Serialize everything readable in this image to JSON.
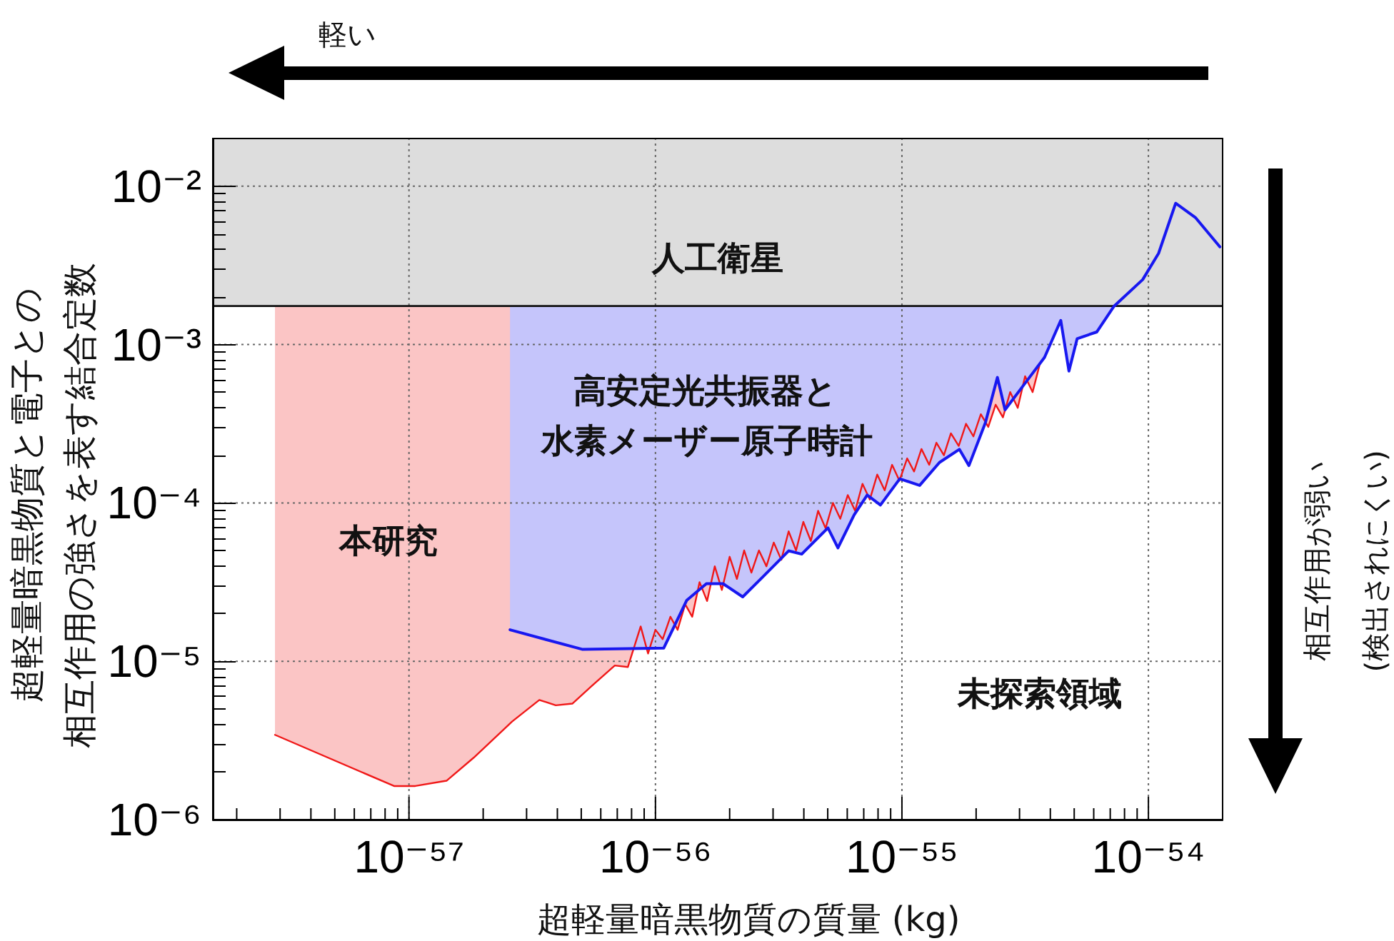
{
  "chart_data": {
    "type": "line",
    "xlabel": "超軽量暗黒物質の質量 (kg)",
    "ylabel": "超軽量暗黒物質と電子との相互作用の強さを表す結合定数",
    "log": "xy",
    "grid": true,
    "xlim": [
      1.6e-58,
      2e-54
    ],
    "ylim": [
      1e-06,
      0.02
    ],
    "xticks": [
      {
        "value": 1e-57,
        "label": "10⁻⁵⁷"
      },
      {
        "value": 1e-56,
        "label": "10⁻⁵⁶"
      },
      {
        "value": 1e-55,
        "label": "10⁻⁵⁵"
      },
      {
        "value": 1e-54,
        "label": "10⁻⁵⁴"
      },
      {
        "value": 2e-58,
        "label": null
      },
      {
        "value": 3e-58,
        "label": null
      },
      {
        "value": 4e-58,
        "label": null
      },
      {
        "value": 5e-58,
        "label": null
      },
      {
        "value": 6e-58,
        "label": null
      },
      {
        "value": 7e-58,
        "label": null
      },
      {
        "value": 8e-58,
        "label": null
      },
      {
        "value": 9e-58,
        "label": null
      },
      {
        "value": 2e-57,
        "label": null
      },
      {
        "value": 3e-57,
        "label": null
      },
      {
        "value": 4e-57,
        "label": null
      },
      {
        "value": 5e-57,
        "label": null
      },
      {
        "value": 6e-57,
        "label": null
      },
      {
        "value": 7e-57,
        "label": null
      },
      {
        "value": 8e-57,
        "label": null
      },
      {
        "value": 9e-57,
        "label": null
      },
      {
        "value": 2e-56,
        "label": null
      },
      {
        "value": 3e-56,
        "label": null
      },
      {
        "value": 4e-56,
        "label": null
      },
      {
        "value": 5e-56,
        "label": null
      },
      {
        "value": 6e-56,
        "label": null
      },
      {
        "value": 7e-56,
        "label": null
      },
      {
        "value": 8e-56,
        "label": null
      },
      {
        "value": 9e-56,
        "label": null
      },
      {
        "value": 2e-55,
        "label": null
      },
      {
        "value": 3e-55,
        "label": null
      },
      {
        "value": 4e-55,
        "label": null
      },
      {
        "value": 5e-55,
        "label": null
      },
      {
        "value": 6e-55,
        "label": null
      },
      {
        "value": 7e-55,
        "label": null
      },
      {
        "value": 8e-55,
        "label": null
      },
      {
        "value": 9e-55,
        "label": null
      }
    ],
    "yticks": [
      {
        "value": 1e-06,
        "label": "10⁻⁶"
      },
      {
        "value": 1e-05,
        "label": "10⁻⁵"
      },
      {
        "value": 0.0001,
        "label": "10⁻⁴"
      },
      {
        "value": 0.001,
        "label": "10⁻³"
      },
      {
        "value": 0.01,
        "label": "10⁻²"
      },
      {
        "value": 2e-06,
        "label": null
      },
      {
        "value": 3e-06,
        "label": null
      },
      {
        "value": 4e-06,
        "label": null
      },
      {
        "value": 5e-06,
        "label": null
      },
      {
        "value": 6e-06,
        "label": null
      },
      {
        "value": 7e-06,
        "label": null
      },
      {
        "value": 8e-06,
        "label": null
      },
      {
        "value": 9e-06,
        "label": null
      },
      {
        "value": 2e-05,
        "label": null
      },
      {
        "value": 3e-05,
        "label": null
      },
      {
        "value": 4e-05,
        "label": null
      },
      {
        "value": 5e-05,
        "label": null
      },
      {
        "value": 6e-05,
        "label": null
      },
      {
        "value": 7e-05,
        "label": null
      },
      {
        "value": 8e-05,
        "label": null
      },
      {
        "value": 9e-05,
        "label": null
      },
      {
        "value": 0.0002,
        "label": null
      },
      {
        "value": 0.0003,
        "label": null
      },
      {
        "value": 0.0004,
        "label": null
      },
      {
        "value": 0.0005,
        "label": null
      },
      {
        "value": 0.0006,
        "label": null
      },
      {
        "value": 0.0007,
        "label": null
      },
      {
        "value": 0.0008,
        "label": null
      },
      {
        "value": 0.0009,
        "label": null
      },
      {
        "value": 0.002,
        "label": null
      },
      {
        "value": 0.003,
        "label": null
      },
      {
        "value": 0.004,
        "label": null
      },
      {
        "value": 0.005,
        "label": null
      },
      {
        "value": 0.006,
        "label": null
      },
      {
        "value": 0.007,
        "label": null
      },
      {
        "value": 0.008,
        "label": null
      },
      {
        "value": 0.009,
        "label": null
      }
    ],
    "bands": [
      {
        "axis": "y",
        "from": 0.00175,
        "to": 0.02,
        "label": "人工衛星",
        "color": "#dddddd"
      }
    ],
    "ref_lines": [
      {
        "axis": "y",
        "value": 0.00175,
        "color": "#111111"
      }
    ],
    "annotations": [
      "軽い",
      "相互作用が弱い\n(検出されにくい)",
      "本研究",
      "高安定光共振器と",
      "水素メーザー原子時計",
      "未探索領域"
    ],
    "series": [
      {
        "color": "#f01818",
        "x": [
          2.86e-58,
          8.7e-58,
          1.06e-57,
          1.42e-57,
          1.83e-57,
          2.62e-57,
          3.38e-57,
          3.94e-57,
          4.6e-57,
          5.52e-57,
          6.84e-57,
          7.73e-57,
          8.71e-57,
          9.33e-57,
          1e-56,
          1.07e-56,
          1.15e-56,
          1.23e-56,
          1.32e-56,
          1.41e-56,
          1.51e-56,
          1.62e-56,
          1.74e-56,
          1.86e-56,
          2e-56,
          2.14e-56,
          2.29e-56,
          2.45e-56,
          2.63e-56,
          2.82e-56,
          3.02e-56,
          3.24e-56,
          3.47e-56,
          3.72e-56,
          3.98e-56,
          4.27e-56,
          4.57e-56,
          4.9e-56,
          5.25e-56,
          5.62e-56,
          6.03e-56,
          6.46e-56,
          6.92e-56,
          7.41e-56,
          7.94e-56,
          8.51e-56,
          9.12e-56,
          9.77e-56,
          1.05e-55,
          1.12e-55,
          1.2e-55,
          1.29e-55,
          1.38e-55,
          1.48e-55,
          1.58e-55,
          1.7e-55,
          1.82e-55,
          1.95e-55,
          2.09e-55,
          2.24e-55,
          2.4e-55,
          2.57e-55,
          2.75e-55,
          2.95e-55,
          3.16e-55,
          3.39e-55,
          3.63e-55
        ],
        "values": [
          3.43e-06,
          1.63e-06,
          1.63e-06,
          1.76e-06,
          2.46e-06,
          4.16e-06,
          5.7e-06,
          5.27e-06,
          5.4e-06,
          7e-06,
          9.4e-06,
          9.2e-06,
          1.66e-05,
          1.12e-05,
          1.58e-05,
          1.38e-05,
          1.91e-05,
          1.58e-05,
          2.29e-05,
          1.91e-05,
          3.16e-05,
          2.4e-05,
          3.98e-05,
          2.82e-05,
          4.57e-05,
          3.31e-05,
          5.01e-05,
          3.63e-05,
          5.01e-05,
          3.98e-05,
          5.62e-05,
          4.37e-05,
          6.61e-05,
          5.01e-05,
          7.59e-05,
          5.75e-05,
          8.91e-05,
          6.92e-05,
          0.0001,
          7.94e-05,
          0.000112,
          8.91e-05,
          0.000132,
          0.000105,
          0.000151,
          0.00012,
          0.000174,
          0.000138,
          0.000191,
          0.000158,
          0.000219,
          0.000174,
          0.00024,
          0.0002,
          0.000275,
          0.000229,
          0.000316,
          0.000263,
          0.000363,
          0.000302,
          0.000417,
          0.000347,
          0.000501,
          0.000398,
          0.000631,
          0.000501,
          0.000759
        ],
        "lower": [
          3.43e-06,
          1.63e-06,
          1.63e-06,
          1.76e-06,
          2.46e-06,
          4.16e-06,
          5.7e-06,
          5.27e-06,
          5.4e-06,
          7e-06,
          9.4e-06,
          9.2e-06,
          1.66e-05,
          1.12e-05,
          1.58e-05,
          1.38e-05,
          1.91e-05,
          1.58e-05,
          2.29e-05,
          1.91e-05,
          3.16e-05,
          2.4e-05,
          3.98e-05,
          2.82e-05,
          4.57e-05,
          3.31e-05,
          5.01e-05,
          3.63e-05,
          5.01e-05,
          3.98e-05,
          5.62e-05,
          4.37e-05,
          6.61e-05,
          5.01e-05,
          7.59e-05,
          5.75e-05,
          8.91e-05,
          6.92e-05,
          0.0001,
          7.94e-05,
          0.000112,
          8.91e-05,
          0.000132,
          0.000105,
          0.000151,
          0.00012,
          0.000174,
          0.000138,
          0.000191,
          0.000158,
          0.000219,
          0.000174,
          0.00024,
          0.0002,
          0.000275,
          0.000229,
          0.000316,
          0.000263,
          0.000363,
          0.000302,
          0.000417,
          0.000347,
          0.000501,
          0.000398,
          0.000631,
          0.000501,
          0.000759
        ],
        "upper": [
          0.00175,
          0.00175,
          0.00175,
          0.00175,
          0.00175,
          0.00175,
          0.00175,
          0.00175,
          0.00175,
          0.00175,
          0.00175,
          0.00175,
          0.00175,
          0.00175,
          0.00175,
          0.00175,
          0.00175,
          0.00175,
          0.00175,
          0.00175,
          0.00175,
          0.00175,
          0.00175,
          0.00175,
          0.00175,
          0.00175,
          0.00175,
          0.00175,
          0.00175,
          0.00175,
          0.00175,
          0.00175,
          0.00175,
          0.00175,
          0.00175,
          0.00175,
          0.00175,
          0.00175,
          0.00175,
          0.00175,
          0.00175,
          0.00175,
          0.00175,
          0.00175,
          0.00175,
          0.00175,
          0.00175,
          0.00175,
          0.00175,
          0.00175,
          0.00175,
          0.00175,
          0.00175,
          0.00175,
          0.00175,
          0.00175,
          0.00175,
          0.00175,
          0.00175,
          0.00175,
          0.00175,
          0.00175,
          0.00175,
          0.00175,
          0.00175,
          0.00175,
          0.00175
        ]
      },
      {
        "color": "#1818f0",
        "x": [
          2.57e-57,
          5.04e-57,
          1.08e-56,
          1.34e-56,
          1.61e-56,
          1.88e-56,
          2.26e-56,
          2.72e-56,
          3.47e-56,
          3.92e-56,
          5.01e-56,
          5.5e-56,
          6.4e-56,
          7.23e-56,
          8.18e-56,
          9.8e-56,
          1.18e-55,
          1.42e-55,
          1.71e-55,
          1.87e-55,
          2.18e-55,
          2.44e-55,
          2.62e-55,
          3.15e-55,
          3.79e-55,
          4.41e-55,
          4.76e-55,
          5.14e-55,
          6.17e-55,
          7.26e-55,
          9.48e-55,
          1.1e-54,
          1.29e-54,
          1.55e-54,
          1.95e-54
        ],
        "values": [
          1.58e-05,
          1.19e-05,
          1.21e-05,
          2.43e-05,
          3.09e-05,
          3.09e-05,
          2.55e-05,
          3.4e-05,
          4.98e-05,
          4.75e-05,
          6.95e-05,
          5.2e-05,
          8.4e-05,
          0.000112,
          9.7e-05,
          0.000142,
          0.000129,
          0.00018,
          0.000218,
          0.000172,
          0.00032,
          0.00062,
          0.000387,
          0.000566,
          0.00083,
          0.00142,
          0.00068,
          0.00109,
          0.0012,
          0.00175,
          0.00257,
          0.00377,
          0.0078,
          0.00635,
          0.00414
        ],
        "lower": [
          1.58e-05,
          1.19e-05,
          1.21e-05,
          2.43e-05,
          3.09e-05,
          3.09e-05,
          2.55e-05,
          3.4e-05,
          4.98e-05,
          4.75e-05,
          6.95e-05,
          5.2e-05,
          8.4e-05,
          0.000112,
          9.7e-05,
          0.000142,
          0.000129,
          0.00018,
          0.000218,
          0.000172,
          0.00032,
          0.00062,
          0.000387,
          0.000566,
          0.00083,
          0.00142,
          0.00068,
          0.00109,
          0.0012,
          0.00175,
          null,
          null,
          null,
          null,
          null
        ],
        "upper": [
          0.00175,
          0.00175,
          0.00175,
          0.00175,
          0.00175,
          0.00175,
          0.00175,
          0.00175,
          0.00175,
          0.00175,
          0.00175,
          0.00175,
          0.00175,
          0.00175,
          0.00175,
          0.00175,
          0.00175,
          0.00175,
          0.00175,
          0.00175,
          0.00175,
          0.00175,
          0.00175,
          0.00175,
          0.00175,
          0.00175,
          0.00175,
          0.00175,
          0.00175,
          0.00175,
          null,
          null,
          null,
          null,
          null
        ]
      }
    ]
  }
}
